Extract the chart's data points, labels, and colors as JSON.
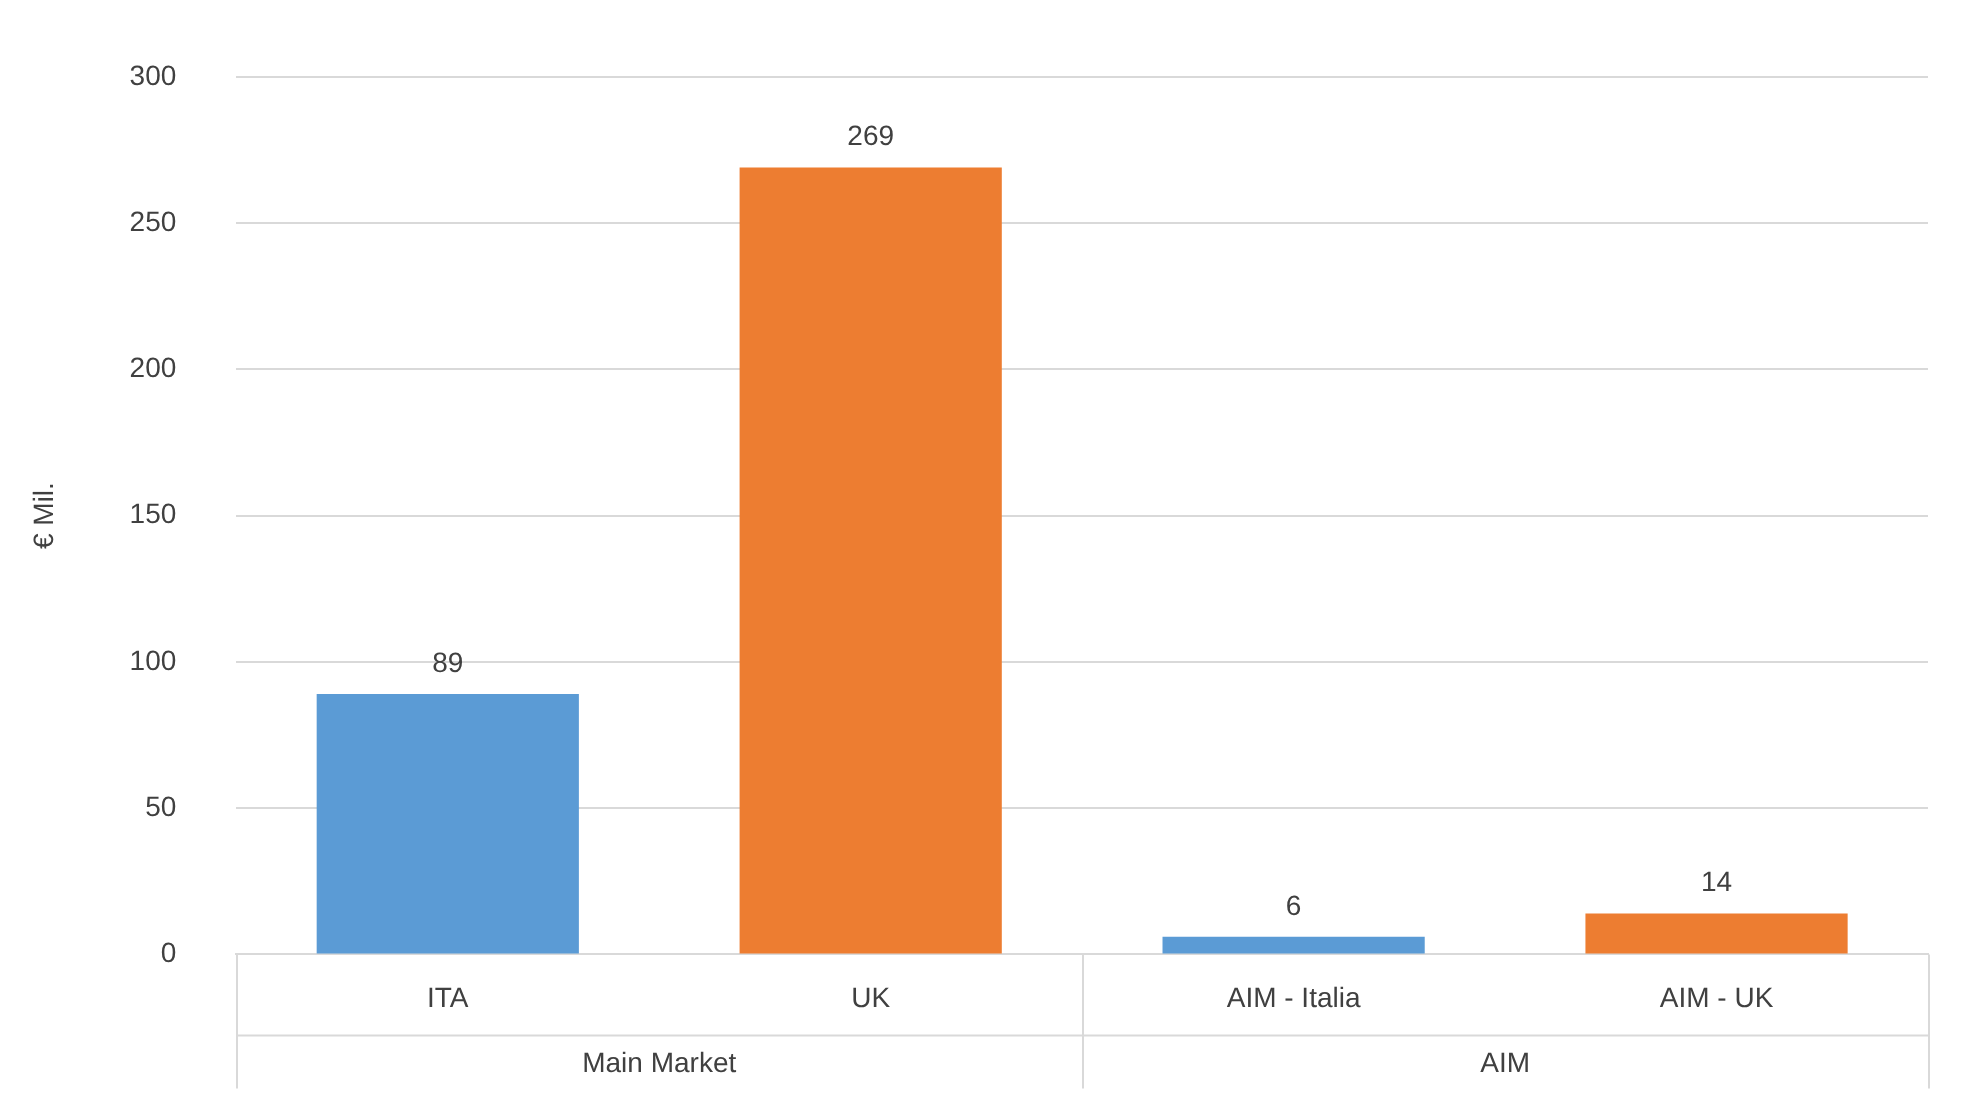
{
  "chart_data": {
    "type": "bar",
    "categories": [
      "ITA",
      "UK",
      "AIM - Italia",
      "AIM - UK"
    ],
    "values": [
      89,
      269,
      6,
      14
    ],
    "colors": [
      "#5b9bd5",
      "#ed7d31",
      "#5b9bd5",
      "#ed7d31"
    ],
    "ylabel": "€ Mil.",
    "ylim": [
      0,
      300
    ],
    "yticks": [
      0,
      50,
      100,
      150,
      200,
      250,
      300
    ],
    "grid": "y",
    "legend": false,
    "data_labels": true,
    "annotations": [
      "Main Market",
      "AIM"
    ]
  }
}
